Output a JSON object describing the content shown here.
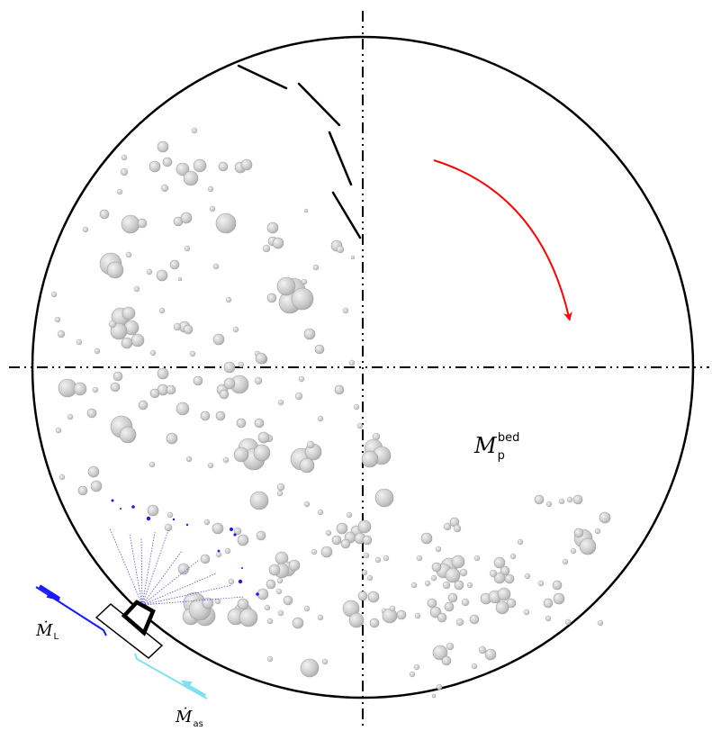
{
  "labels": {
    "bed_mass": {
      "main": "M",
      "sub": "p",
      "sup": "bed"
    },
    "liquid_flow": {
      "main": "Ṁ",
      "sub": "L"
    },
    "atomization_gas_flow": {
      "main": "Ṁ",
      "sub": "as"
    }
  },
  "colors": {
    "rotation_arrow": "#ff0000",
    "liquid_line": "#1a1aff",
    "gas_line": "#7fe0f0",
    "spray_lines": "#5555cc",
    "particle_fill": "#c8c8c8",
    "particle_stroke": "#a0a0a0"
  },
  "rotation_direction": "clockwise",
  "icons": {
    "drum": "circle-outline",
    "nozzle": "trapezoid-nozzle",
    "baffles": "line-segments"
  }
}
